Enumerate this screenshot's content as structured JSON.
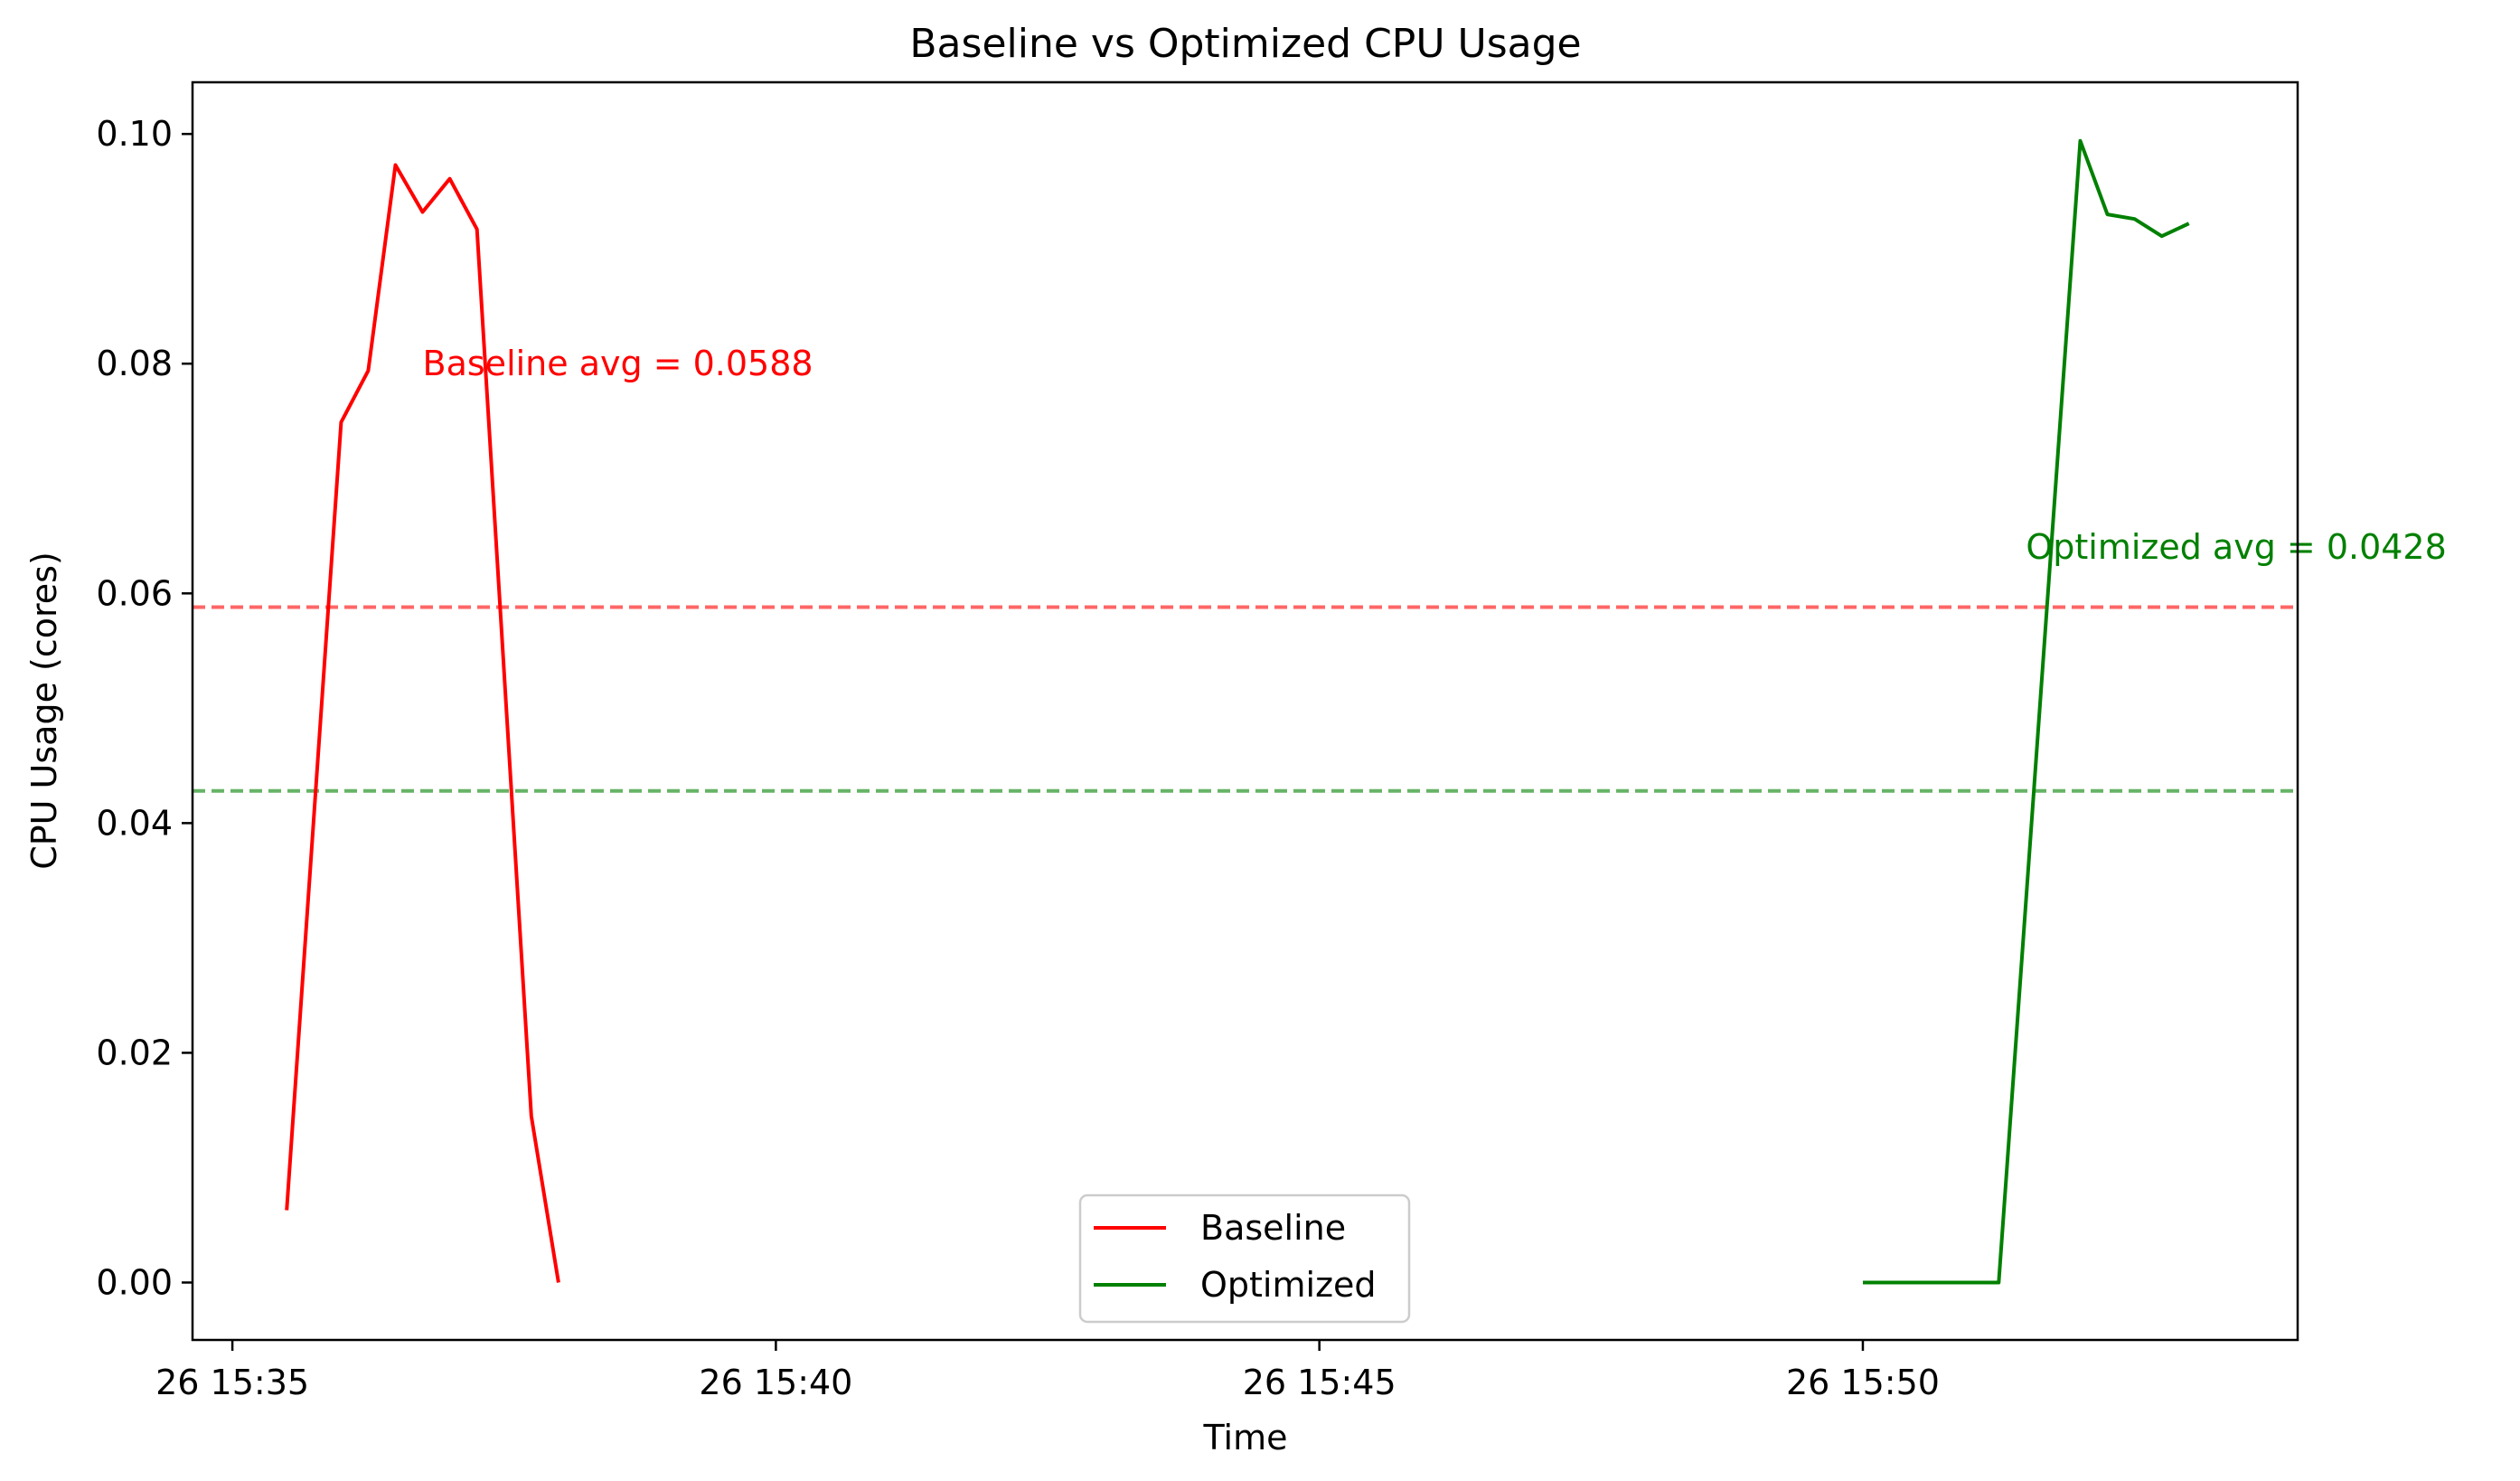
{
  "chart_data": {
    "type": "line",
    "title": "Baseline vs Optimized CPU Usage",
    "xlabel": "Time",
    "ylabel": "CPU Usage (cores)",
    "xlim": [
      "26 15:34:38",
      "26 15:54:00"
    ],
    "ylim": [
      -0.005,
      0.1045
    ],
    "x_ticks": [
      {
        "t": "26 15:35:00",
        "label": "26 15:35"
      },
      {
        "t": "26 15:40:00",
        "label": "26 15:40"
      },
      {
        "t": "26 15:45:00",
        "label": "26 15:45"
      },
      {
        "t": "26 15:50:00",
        "label": "26 15:50"
      }
    ],
    "y_ticks": [
      0.0,
      0.02,
      0.04,
      0.06,
      0.08,
      0.1
    ],
    "y_tick_labels": [
      "0.00",
      "0.02",
      "0.04",
      "0.06",
      "0.08",
      "0.10"
    ],
    "grid": false,
    "legend_position": "lower-center",
    "series": [
      {
        "name": "Baseline",
        "color": "#ff0000",
        "x": [
          "26 15:35:30",
          "26 15:36:00",
          "26 15:36:15",
          "26 15:36:30",
          "26 15:36:45",
          "26 15:37:00",
          "26 15:37:15",
          "26 15:37:45",
          "26 15:38:00"
        ],
        "values": [
          0.0063,
          0.0749,
          0.0794,
          0.0973,
          0.0932,
          0.0961,
          0.0917,
          0.0145,
          0.0
        ]
      },
      {
        "name": "Optimized",
        "color": "#008000",
        "x": [
          "26 15:50:00",
          "26 15:51:15",
          "26 15:52:00",
          "26 15:52:15",
          "26 15:52:30",
          "26 15:52:45",
          "26 15:53:00"
        ],
        "values": [
          0.0,
          0.0,
          0.0994,
          0.093,
          0.0926,
          0.0911,
          0.0922
        ]
      }
    ],
    "reference_lines": [
      {
        "name": "Baseline avg",
        "value": 0.0588,
        "color": "#ff0000",
        "opacity": 0.6,
        "style": "dashed"
      },
      {
        "name": "Optimized avg",
        "value": 0.0428,
        "color": "#008000",
        "opacity": 0.6,
        "style": "dashed"
      }
    ],
    "annotations": [
      {
        "text": "Baseline avg = 0.0588",
        "color": "#ff0000",
        "x": "26 15:36:45",
        "y": 0.079
      },
      {
        "text": "Optimized avg = 0.0428",
        "color": "#008000",
        "x": "26 15:51:30",
        "y": 0.063
      }
    ]
  }
}
